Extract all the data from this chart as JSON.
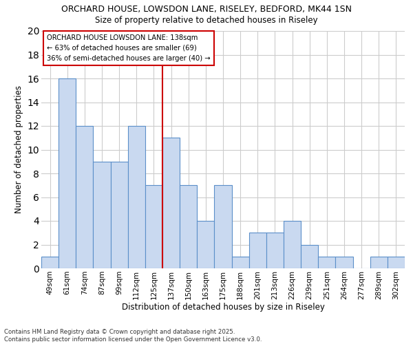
{
  "title": "ORCHARD HOUSE, LOWSDON LANE, RISELEY, BEDFORD, MK44 1SN",
  "subtitle": "Size of property relative to detached houses in Riseley",
  "xlabel": "Distribution of detached houses by size in Riseley",
  "ylabel": "Number of detached properties",
  "categories": [
    "49sqm",
    "61sqm",
    "74sqm",
    "87sqm",
    "99sqm",
    "112sqm",
    "125sqm",
    "137sqm",
    "150sqm",
    "163sqm",
    "175sqm",
    "188sqm",
    "201sqm",
    "213sqm",
    "226sqm",
    "239sqm",
    "251sqm",
    "264sqm",
    "277sqm",
    "289sqm",
    "302sqm"
  ],
  "values": [
    1,
    16,
    12,
    9,
    9,
    12,
    7,
    11,
    7,
    4,
    7,
    1,
    3,
    3,
    4,
    2,
    1,
    1,
    0,
    1,
    1
  ],
  "bar_color": "#c9d9f0",
  "bar_edge_color": "#5b8fc9",
  "highlight_index": 7,
  "vline_color": "#cc0000",
  "legend_text_line1": "ORCHARD HOUSE LOWSDON LANE: 138sqm",
  "legend_text_line2": "← 63% of detached houses are smaller (69)",
  "legend_text_line3": "36% of semi-detached houses are larger (40) →",
  "legend_box_color": "#cc0000",
  "ylim": [
    0,
    20
  ],
  "yticks": [
    0,
    2,
    4,
    6,
    8,
    10,
    12,
    14,
    16,
    18,
    20
  ],
  "footer_line1": "Contains HM Land Registry data © Crown copyright and database right 2025.",
  "footer_line2": "Contains public sector information licensed under the Open Government Licence v3.0.",
  "background_color": "#ffffff",
  "grid_color": "#cccccc"
}
